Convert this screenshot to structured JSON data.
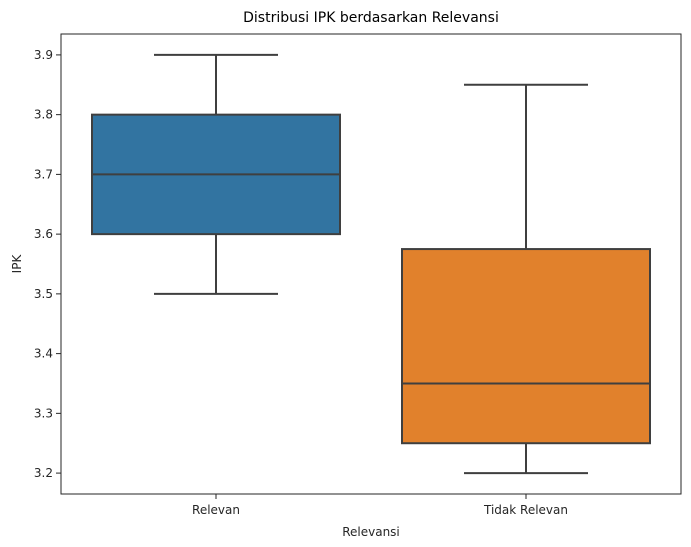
{
  "chart_data": {
    "type": "boxplot",
    "title": "Distribusi IPK berdasarkan Relevansi",
    "xlabel": "Relevansi",
    "ylabel": "IPK",
    "ylim": [
      3.165,
      3.935
    ],
    "yticks": [
      "3.2",
      "3.3",
      "3.4",
      "3.5",
      "3.6",
      "3.7",
      "3.8",
      "3.9"
    ],
    "categories": [
      "Relevan",
      "Tidak Relevan"
    ],
    "boxes": [
      {
        "category": "Relevan",
        "whislo": 3.5,
        "q1": 3.6,
        "median": 3.7,
        "q3": 3.8,
        "whishi": 3.9,
        "color": "#3274a1"
      },
      {
        "category": "Tidak Relevan",
        "whislo": 3.2,
        "q1": 3.25,
        "median": 3.35,
        "q3": 3.575,
        "whishi": 3.85,
        "color": "#e1812c"
      }
    ],
    "grid": false,
    "legend": "none"
  }
}
